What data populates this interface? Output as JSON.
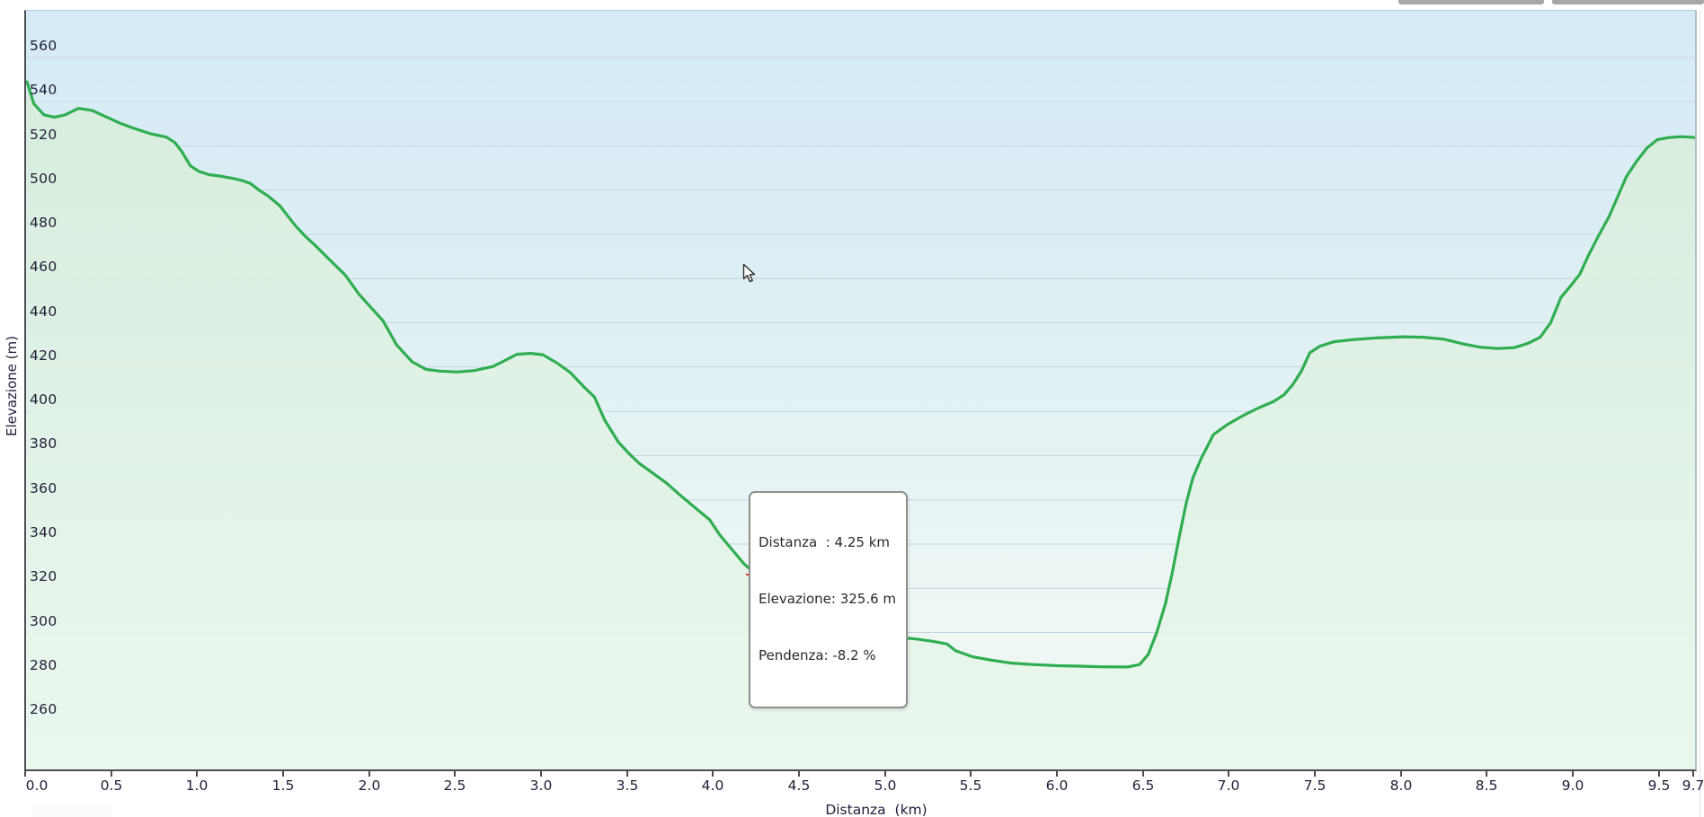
{
  "chart_data": {
    "type": "area",
    "title": "",
    "xlabel": "Distanza  (km)",
    "ylabel": "Elevazione (m)",
    "xlim": [
      0,
      9.7
    ],
    "ylim": [
      238,
      581
    ],
    "grid": "horizontal",
    "legend": "none",
    "x_ticks": [
      {
        "km": 0.0,
        "label": "0.0"
      },
      {
        "km": 0.5,
        "label": "0.5"
      },
      {
        "km": 1.0,
        "label": "1.0"
      },
      {
        "km": 1.5,
        "label": "1.5"
      },
      {
        "km": 2.0,
        "label": "2.0"
      },
      {
        "km": 2.5,
        "label": "2.5"
      },
      {
        "km": 3.0,
        "label": "3.0"
      },
      {
        "km": 3.5,
        "label": "3.5"
      },
      {
        "km": 4.0,
        "label": "4.0"
      },
      {
        "km": 4.5,
        "label": "4.5"
      },
      {
        "km": 5.0,
        "label": "5.0"
      },
      {
        "km": 5.5,
        "label": "5.5"
      },
      {
        "km": 6.0,
        "label": "6.0"
      },
      {
        "km": 6.5,
        "label": "6.5"
      },
      {
        "km": 7.0,
        "label": "7.0"
      },
      {
        "km": 7.5,
        "label": "7.5"
      },
      {
        "km": 8.0,
        "label": "8.0"
      },
      {
        "km": 8.5,
        "label": "8.5"
      },
      {
        "km": 9.0,
        "label": "9.0"
      },
      {
        "km": 9.5,
        "label": "9.5"
      },
      {
        "km": 9.7,
        "label": "9.7"
      }
    ],
    "y_ticks": [
      560,
      540,
      520,
      500,
      480,
      460,
      440,
      420,
      400,
      380,
      360,
      340,
      320,
      300,
      280,
      260
    ],
    "series": [
      {
        "name": "elevation-profile",
        "color": "#2fae50",
        "points": [
          [
            0.0,
            549
          ],
          [
            0.04,
            539
          ],
          [
            0.1,
            534
          ],
          [
            0.16,
            533
          ],
          [
            0.22,
            534
          ],
          [
            0.3,
            537
          ],
          [
            0.38,
            536
          ],
          [
            0.45,
            533.5
          ],
          [
            0.55,
            530
          ],
          [
            0.64,
            527.5
          ],
          [
            0.72,
            525.5
          ],
          [
            0.81,
            524
          ],
          [
            0.86,
            521.5
          ],
          [
            0.9,
            517.5
          ],
          [
            0.95,
            511
          ],
          [
            1.0,
            508.5
          ],
          [
            1.06,
            507
          ],
          [
            1.12,
            506.4
          ],
          [
            1.2,
            505.3
          ],
          [
            1.25,
            504.4
          ],
          [
            1.3,
            503
          ],
          [
            1.35,
            500
          ],
          [
            1.4,
            497.5
          ],
          [
            1.47,
            493
          ],
          [
            1.56,
            484
          ],
          [
            1.62,
            479
          ],
          [
            1.68,
            474.7
          ],
          [
            1.76,
            468.5
          ],
          [
            1.85,
            461.7
          ],
          [
            1.93,
            453
          ],
          [
            2.0,
            447
          ],
          [
            2.07,
            441
          ],
          [
            2.15,
            430
          ],
          [
            2.24,
            422.4
          ],
          [
            2.32,
            419
          ],
          [
            2.4,
            418.2
          ],
          [
            2.5,
            417.8
          ],
          [
            2.6,
            418.4
          ],
          [
            2.71,
            420.3
          ],
          [
            2.78,
            423
          ],
          [
            2.85,
            425.8
          ],
          [
            2.93,
            426.2
          ],
          [
            3.0,
            425.6
          ],
          [
            3.08,
            422
          ],
          [
            3.16,
            417.5
          ],
          [
            3.24,
            411
          ],
          [
            3.3,
            406.5
          ],
          [
            3.36,
            396
          ],
          [
            3.44,
            386
          ],
          [
            3.5,
            381
          ],
          [
            3.56,
            376.5
          ],
          [
            3.64,
            372
          ],
          [
            3.72,
            367.5
          ],
          [
            3.8,
            362
          ],
          [
            3.9,
            355.5
          ],
          [
            3.97,
            351
          ],
          [
            4.03,
            344
          ],
          [
            4.1,
            337.5
          ],
          [
            4.17,
            331
          ],
          [
            4.25,
            325.6
          ],
          [
            4.32,
            317.5
          ],
          [
            4.4,
            310.5
          ],
          [
            4.48,
            306
          ],
          [
            4.56,
            303.3
          ],
          [
            4.65,
            301.2
          ],
          [
            4.75,
            300
          ],
          [
            4.85,
            299.2
          ],
          [
            4.95,
            298.6
          ],
          [
            5.06,
            297.8
          ],
          [
            5.17,
            297.1
          ],
          [
            5.27,
            296
          ],
          [
            5.35,
            294.8
          ],
          [
            5.4,
            291.8
          ],
          [
            5.5,
            289
          ],
          [
            5.6,
            287.6
          ],
          [
            5.72,
            286.2
          ],
          [
            5.85,
            285.5
          ],
          [
            6.0,
            285
          ],
          [
            6.12,
            284.8
          ],
          [
            6.25,
            284.5
          ],
          [
            6.4,
            284.4
          ],
          [
            6.47,
            285.5
          ],
          [
            6.52,
            290
          ],
          [
            6.57,
            300
          ],
          [
            6.62,
            313
          ],
          [
            6.66,
            327
          ],
          [
            6.7,
            343
          ],
          [
            6.74,
            358
          ],
          [
            6.78,
            370
          ],
          [
            6.83,
            379
          ],
          [
            6.9,
            389.5
          ],
          [
            6.98,
            394
          ],
          [
            7.07,
            398
          ],
          [
            7.16,
            401.5
          ],
          [
            7.25,
            404.5
          ],
          [
            7.31,
            407.5
          ],
          [
            7.36,
            412
          ],
          [
            7.41,
            418
          ],
          [
            7.46,
            426.5
          ],
          [
            7.52,
            429.5
          ],
          [
            7.6,
            431.5
          ],
          [
            7.72,
            432.5
          ],
          [
            7.85,
            433.2
          ],
          [
            8.0,
            433.7
          ],
          [
            8.12,
            433.5
          ],
          [
            8.24,
            432.6
          ],
          [
            8.35,
            430.5
          ],
          [
            8.45,
            429
          ],
          [
            8.55,
            428.4
          ],
          [
            8.65,
            428.8
          ],
          [
            8.73,
            430.8
          ],
          [
            8.8,
            433.5
          ],
          [
            8.86,
            440
          ],
          [
            8.92,
            451.5
          ],
          [
            8.98,
            457
          ],
          [
            9.03,
            462
          ],
          [
            9.08,
            470.5
          ],
          [
            9.14,
            479.5
          ],
          [
            9.2,
            488
          ],
          [
            9.25,
            497
          ],
          [
            9.3,
            506
          ],
          [
            9.36,
            513
          ],
          [
            9.42,
            519
          ],
          [
            9.48,
            522.8
          ],
          [
            9.55,
            523.8
          ],
          [
            9.62,
            524.2
          ],
          [
            9.7,
            523.8
          ]
        ]
      }
    ],
    "hover_marker": {
      "distanza_km": 4.25,
      "elevazione_m": 325.6,
      "pendenza_pct": -8.2
    }
  },
  "tooltip": {
    "lines": [
      "Distanza  : 4.25 km",
      "Elevazione: 325.6 m",
      "Pendenza: -8.2 %"
    ]
  },
  "colors": {
    "line": "#2fae50",
    "area_fill_top": "#d8eddc",
    "area_fill_bottom": "#eaf7ee",
    "gridline": "#c7d6dc",
    "axis_dark": "#4d4d4d",
    "tick_text": "#1e1e38",
    "marker_red": "#e94343",
    "tooltip_border": "#8f8f8f",
    "top_fragment_gray": "#a7a7a7"
  }
}
